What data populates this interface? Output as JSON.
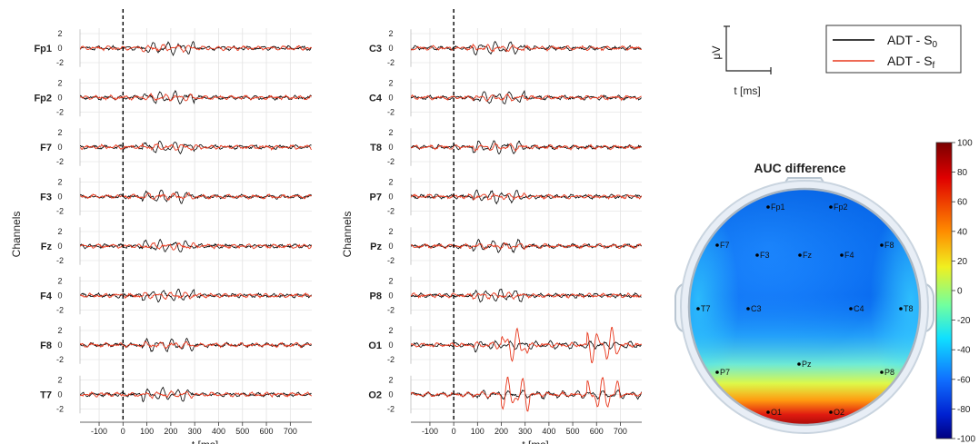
{
  "chart_data": [
    {
      "type": "line",
      "panel": "left",
      "ylabel": "Channels",
      "xlabel": "t [ms]",
      "xlim": [
        -180,
        790
      ],
      "xticks": [
        -100,
        0,
        100,
        200,
        300,
        400,
        500,
        600,
        700
      ],
      "ylim": [
        -2.5,
        2.5
      ],
      "yticks": [
        2,
        0,
        -2
      ],
      "stimulus_marker_ms": 0,
      "channels": [
        "Fp1",
        "Fp2",
        "F7",
        "F3",
        "Fz",
        "F4",
        "F8",
        "T7"
      ],
      "series": [
        {
          "name": "ADT - S0",
          "color": "#000000"
        },
        {
          "name": "ADT - Sf",
          "color": "#e8381d"
        }
      ],
      "grid": true
    },
    {
      "type": "line",
      "panel": "middle",
      "ylabel": "Channels",
      "xlabel": "t [ms]",
      "xlim": [
        -180,
        790
      ],
      "xticks": [
        -100,
        0,
        100,
        200,
        300,
        400,
        500,
        600,
        700
      ],
      "ylim": [
        -2.5,
        2.5
      ],
      "yticks": [
        2,
        0,
        -2
      ],
      "stimulus_marker_ms": 0,
      "channels": [
        "C3",
        "C4",
        "T8",
        "P7",
        "Pz",
        "P8",
        "O1",
        "O2"
      ],
      "series": [
        {
          "name": "ADT - S0",
          "color": "#000000"
        },
        {
          "name": "ADT - Sf",
          "color": "#e8381d"
        }
      ],
      "grid": true
    },
    {
      "type": "heatmap",
      "panel": "right",
      "title": "AUC difference",
      "colorbar_range": [
        -100,
        100
      ],
      "colorbar_ticks": [
        100,
        80,
        60,
        40,
        20,
        0,
        -20,
        -40,
        -60,
        -80,
        -100
      ],
      "electrodes": [
        {
          "label": "Fp1",
          "value": -80
        },
        {
          "label": "Fp2",
          "value": -90
        },
        {
          "label": "F7",
          "value": -55
        },
        {
          "label": "F3",
          "value": -75
        },
        {
          "label": "Fz",
          "value": -80
        },
        {
          "label": "F4",
          "value": -85
        },
        {
          "label": "F8",
          "value": -75
        },
        {
          "label": "T7",
          "value": -45
        },
        {
          "label": "C3",
          "value": -60
        },
        {
          "label": "C4",
          "value": -65
        },
        {
          "label": "T8",
          "value": -40
        },
        {
          "label": "Pz",
          "value": -35
        },
        {
          "label": "P7",
          "value": -15
        },
        {
          "label": "P8",
          "value": -15
        },
        {
          "label": "O1",
          "value": 90
        },
        {
          "label": "O2",
          "value": 90
        }
      ]
    }
  ],
  "legend": {
    "entries": [
      {
        "prefix": "ADT - S",
        "sub": "0",
        "color": "#000000"
      },
      {
        "prefix": "ADT - S",
        "sub": "f",
        "color": "#e8381d"
      }
    ]
  },
  "scale_bar": {
    "ylabel": "μV",
    "xlabel": "t [ms]"
  }
}
